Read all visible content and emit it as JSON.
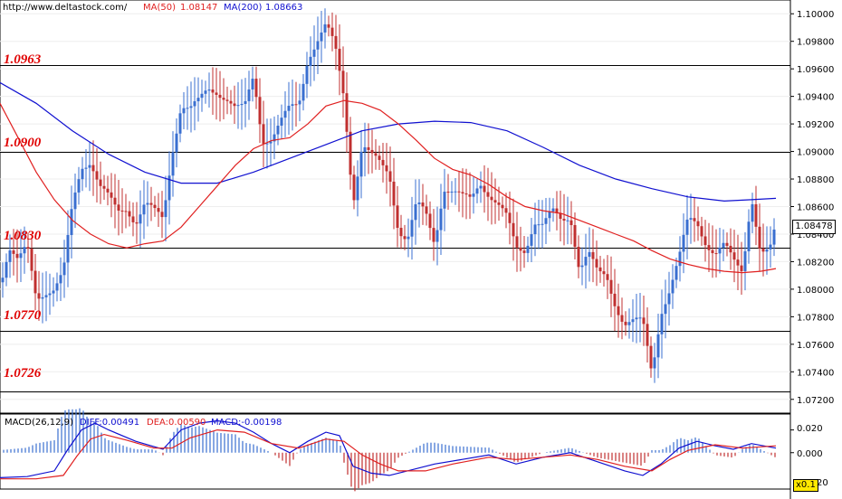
{
  "header": {
    "url": "http://www.deltastock.com/",
    "ma50_label": "MA(50)",
    "ma50_value": "1.08147",
    "ma200_label": "MA(200)",
    "ma200_value": "1.08663"
  },
  "colors": {
    "up": "#3a6fd0",
    "down": "#c03030",
    "ma50": "#e02020",
    "ma200": "#1010d0",
    "level_text": "#e00000",
    "diff": "#1010d0",
    "dea": "#e02020"
  },
  "levels": [
    "1.0963",
    "1.0900",
    "1.0830",
    "1.0770",
    "1.0726"
  ],
  "current_price": "1.08478",
  "macd": {
    "title": "MACD(26,12,9)",
    "diff_label": "DIFF:0.00491",
    "dea_label": "DEA:0.00590",
    "macd_label": "MACD:-0.00198",
    "yticks": [
      "0.020",
      "0.000"
    ],
    "partial_tick": "20",
    "scale_badge": "x0.1"
  },
  "chart_data": {
    "type": "candlestick",
    "ylim": [
      1.071,
      1.101
    ],
    "price_ticks": [
      "1.10000",
      "1.09800",
      "1.09600",
      "1.09400",
      "1.09200",
      "1.09000",
      "1.08800",
      "1.08600",
      "1.08400",
      "1.08200",
      "1.08000",
      "1.07800",
      "1.07600",
      "1.07400",
      "1.07200"
    ],
    "price_tick_values": [
      1.1,
      1.098,
      1.096,
      1.094,
      1.092,
      1.09,
      1.088,
      1.086,
      1.084,
      1.082,
      1.08,
      1.078,
      1.076,
      1.074,
      1.072
    ],
    "levels": [
      1.0963,
      1.09,
      1.083,
      1.077,
      1.0726
    ],
    "close_path": [
      [
        0,
        1.0805
      ],
      [
        10,
        1.083
      ],
      [
        20,
        1.0818
      ],
      [
        30,
        1.083
      ],
      [
        40,
        1.0795
      ],
      [
        50,
        1.08
      ],
      [
        60,
        1.08
      ],
      [
        70,
        1.081
      ],
      [
        80,
        1.086
      ],
      [
        90,
        1.089
      ],
      [
        100,
        1.0895
      ],
      [
        110,
        1.0875
      ],
      [
        120,
        1.0865
      ],
      [
        130,
        1.0855
      ],
      [
        140,
        1.086
      ],
      [
        150,
        1.085
      ],
      [
        160,
        1.0862
      ],
      [
        170,
        1.0855
      ],
      [
        180,
        1.085
      ],
      [
        190,
        1.09
      ],
      [
        200,
        1.0935
      ],
      [
        210,
        1.093
      ],
      [
        220,
        1.0935
      ],
      [
        230,
        1.0945
      ],
      [
        240,
        1.0945
      ],
      [
        250,
        1.094
      ],
      [
        260,
        1.093
      ],
      [
        270,
        1.093
      ],
      [
        280,
        1.0955
      ],
      [
        290,
        1.091
      ],
      [
        300,
        1.091
      ],
      [
        310,
        1.092
      ],
      [
        320,
        1.093
      ],
      [
        330,
        1.0935
      ],
      [
        340,
        1.097
      ],
      [
        350,
        1.098
      ],
      [
        360,
        1.099
      ],
      [
        370,
        1.0975
      ],
      [
        380,
        1.094
      ],
      [
        390,
        1.0865
      ],
      [
        400,
        1.0905
      ],
      [
        410,
        1.0895
      ],
      [
        420,
        1.089
      ],
      [
        430,
        1.0885
      ],
      [
        440,
        1.0845
      ],
      [
        450,
        1.0835
      ],
      [
        460,
        1.086
      ],
      [
        470,
        1.0855
      ],
      [
        480,
        1.0835
      ],
      [
        490,
        1.0875
      ],
      [
        500,
        1.087
      ],
      [
        510,
        1.0865
      ],
      [
        520,
        1.0865
      ],
      [
        530,
        1.088
      ],
      [
        540,
        1.087
      ],
      [
        550,
        1.086
      ],
      [
        560,
        1.085
      ],
      [
        570,
        1.083
      ],
      [
        580,
        1.083
      ],
      [
        590,
        1.085
      ],
      [
        600,
        1.0845
      ],
      [
        610,
        1.0855
      ],
      [
        620,
        1.085
      ],
      [
        630,
        1.0855
      ],
      [
        640,
        1.0815
      ],
      [
        650,
        1.0825
      ],
      [
        660,
        1.081
      ],
      [
        670,
        1.081
      ],
      [
        680,
        1.079
      ],
      [
        690,
        1.0775
      ],
      [
        700,
        1.0775
      ],
      [
        710,
        1.0775
      ],
      [
        720,
        1.074
      ],
      [
        730,
        1.0785
      ],
      [
        740,
        1.08
      ],
      [
        750,
        1.082
      ],
      [
        760,
        1.085
      ],
      [
        770,
        1.085
      ],
      [
        780,
        1.0835
      ],
      [
        790,
        1.0825
      ],
      [
        800,
        1.083
      ],
      [
        810,
        1.082
      ],
      [
        820,
        1.0815
      ],
      [
        830,
        1.087
      ],
      [
        840,
        1.0825
      ],
      [
        850,
        1.0825
      ],
      [
        858,
        1.0848
      ]
    ],
    "ma50_path": [
      [
        0,
        1.0935
      ],
      [
        20,
        1.091
      ],
      [
        40,
        1.0885
      ],
      [
        60,
        1.0865
      ],
      [
        80,
        1.085
      ],
      [
        100,
        1.084
      ],
      [
        120,
        1.0833
      ],
      [
        140,
        1.083
      ],
      [
        160,
        1.0833
      ],
      [
        180,
        1.0835
      ],
      [
        200,
        1.0845
      ],
      [
        220,
        1.086
      ],
      [
        240,
        1.0875
      ],
      [
        260,
        1.089
      ],
      [
        280,
        1.0902
      ],
      [
        300,
        1.0908
      ],
      [
        320,
        1.091
      ],
      [
        340,
        1.092
      ],
      [
        360,
        1.0933
      ],
      [
        380,
        1.0937
      ],
      [
        400,
        1.0935
      ],
      [
        420,
        1.093
      ],
      [
        440,
        1.092
      ],
      [
        460,
        1.0908
      ],
      [
        480,
        1.0895
      ],
      [
        500,
        1.0887
      ],
      [
        520,
        1.0883
      ],
      [
        540,
        1.0876
      ],
      [
        560,
        1.0867
      ],
      [
        580,
        1.086
      ],
      [
        600,
        1.0857
      ],
      [
        620,
        1.0855
      ],
      [
        640,
        1.085
      ],
      [
        660,
        1.0845
      ],
      [
        680,
        1.084
      ],
      [
        700,
        1.0835
      ],
      [
        720,
        1.0828
      ],
      [
        740,
        1.0822
      ],
      [
        760,
        1.0818
      ],
      [
        780,
        1.0815
      ],
      [
        800,
        1.0813
      ],
      [
        820,
        1.0812
      ],
      [
        840,
        1.0813
      ],
      [
        857,
        1.0815
      ]
    ],
    "ma200_path": [
      [
        0,
        1.095
      ],
      [
        40,
        1.0935
      ],
      [
        80,
        1.0915
      ],
      [
        120,
        1.0898
      ],
      [
        160,
        1.0885
      ],
      [
        200,
        1.0877
      ],
      [
        240,
        1.0877
      ],
      [
        280,
        1.0885
      ],
      [
        320,
        1.0895
      ],
      [
        360,
        1.0905
      ],
      [
        400,
        1.0915
      ],
      [
        440,
        1.092
      ],
      [
        480,
        1.0922
      ],
      [
        520,
        1.0921
      ],
      [
        560,
        1.0915
      ],
      [
        600,
        1.0903
      ],
      [
        640,
        1.089
      ],
      [
        680,
        1.088
      ],
      [
        720,
        1.0873
      ],
      [
        760,
        1.0867
      ],
      [
        800,
        1.0864
      ],
      [
        830,
        1.0865
      ],
      [
        857,
        1.0866
      ]
    ],
    "macd_ylim": [
      -0.032,
      0.034
    ],
    "macd_ticks": [
      "0.020",
      "0.000"
    ],
    "macd_tick_values": [
      0.02,
      0.0
    ],
    "diff_path": [
      [
        0,
        -0.022
      ],
      [
        30,
        -0.021
      ],
      [
        60,
        -0.016
      ],
      [
        75,
        0.003
      ],
      [
        90,
        0.02
      ],
      [
        105,
        0.026
      ],
      [
        120,
        0.02
      ],
      [
        150,
        0.01
      ],
      [
        180,
        0.003
      ],
      [
        200,
        0.02
      ],
      [
        220,
        0.026
      ],
      [
        240,
        0.028
      ],
      [
        260,
        0.026
      ],
      [
        280,
        0.018
      ],
      [
        300,
        0.008
      ],
      [
        320,
        0.0
      ],
      [
        340,
        0.01
      ],
      [
        360,
        0.018
      ],
      [
        375,
        0.015
      ],
      [
        390,
        -0.012
      ],
      [
        410,
        -0.018
      ],
      [
        430,
        -0.02
      ],
      [
        450,
        -0.016
      ],
      [
        480,
        -0.01
      ],
      [
        510,
        -0.006
      ],
      [
        540,
        -0.002
      ],
      [
        570,
        -0.01
      ],
      [
        600,
        -0.004
      ],
      [
        630,
        0.0
      ],
      [
        660,
        -0.008
      ],
      [
        690,
        -0.016
      ],
      [
        710,
        -0.02
      ],
      [
        730,
        -0.01
      ],
      [
        750,
        0.004
      ],
      [
        770,
        0.01
      ],
      [
        790,
        0.006
      ],
      [
        810,
        0.003
      ],
      [
        830,
        0.008
      ],
      [
        857,
        0.004
      ]
    ],
    "dea_path": [
      [
        0,
        -0.023
      ],
      [
        40,
        -0.023
      ],
      [
        70,
        -0.02
      ],
      [
        85,
        -0.003
      ],
      [
        100,
        0.012
      ],
      [
        115,
        0.016
      ],
      [
        140,
        0.011
      ],
      [
        170,
        0.004
      ],
      [
        190,
        0.004
      ],
      [
        210,
        0.013
      ],
      [
        240,
        0.02
      ],
      [
        270,
        0.018
      ],
      [
        300,
        0.008
      ],
      [
        330,
        0.004
      ],
      [
        360,
        0.012
      ],
      [
        380,
        0.01
      ],
      [
        400,
        -0.002
      ],
      [
        420,
        -0.01
      ],
      [
        440,
        -0.016
      ],
      [
        470,
        -0.016
      ],
      [
        500,
        -0.01
      ],
      [
        540,
        -0.004
      ],
      [
        570,
        -0.006
      ],
      [
        600,
        -0.004
      ],
      [
        630,
        -0.002
      ],
      [
        660,
        -0.006
      ],
      [
        690,
        -0.012
      ],
      [
        720,
        -0.016
      ],
      [
        740,
        -0.006
      ],
      [
        760,
        0.002
      ],
      [
        790,
        0.007
      ],
      [
        820,
        0.004
      ],
      [
        857,
        0.006
      ]
    ]
  }
}
